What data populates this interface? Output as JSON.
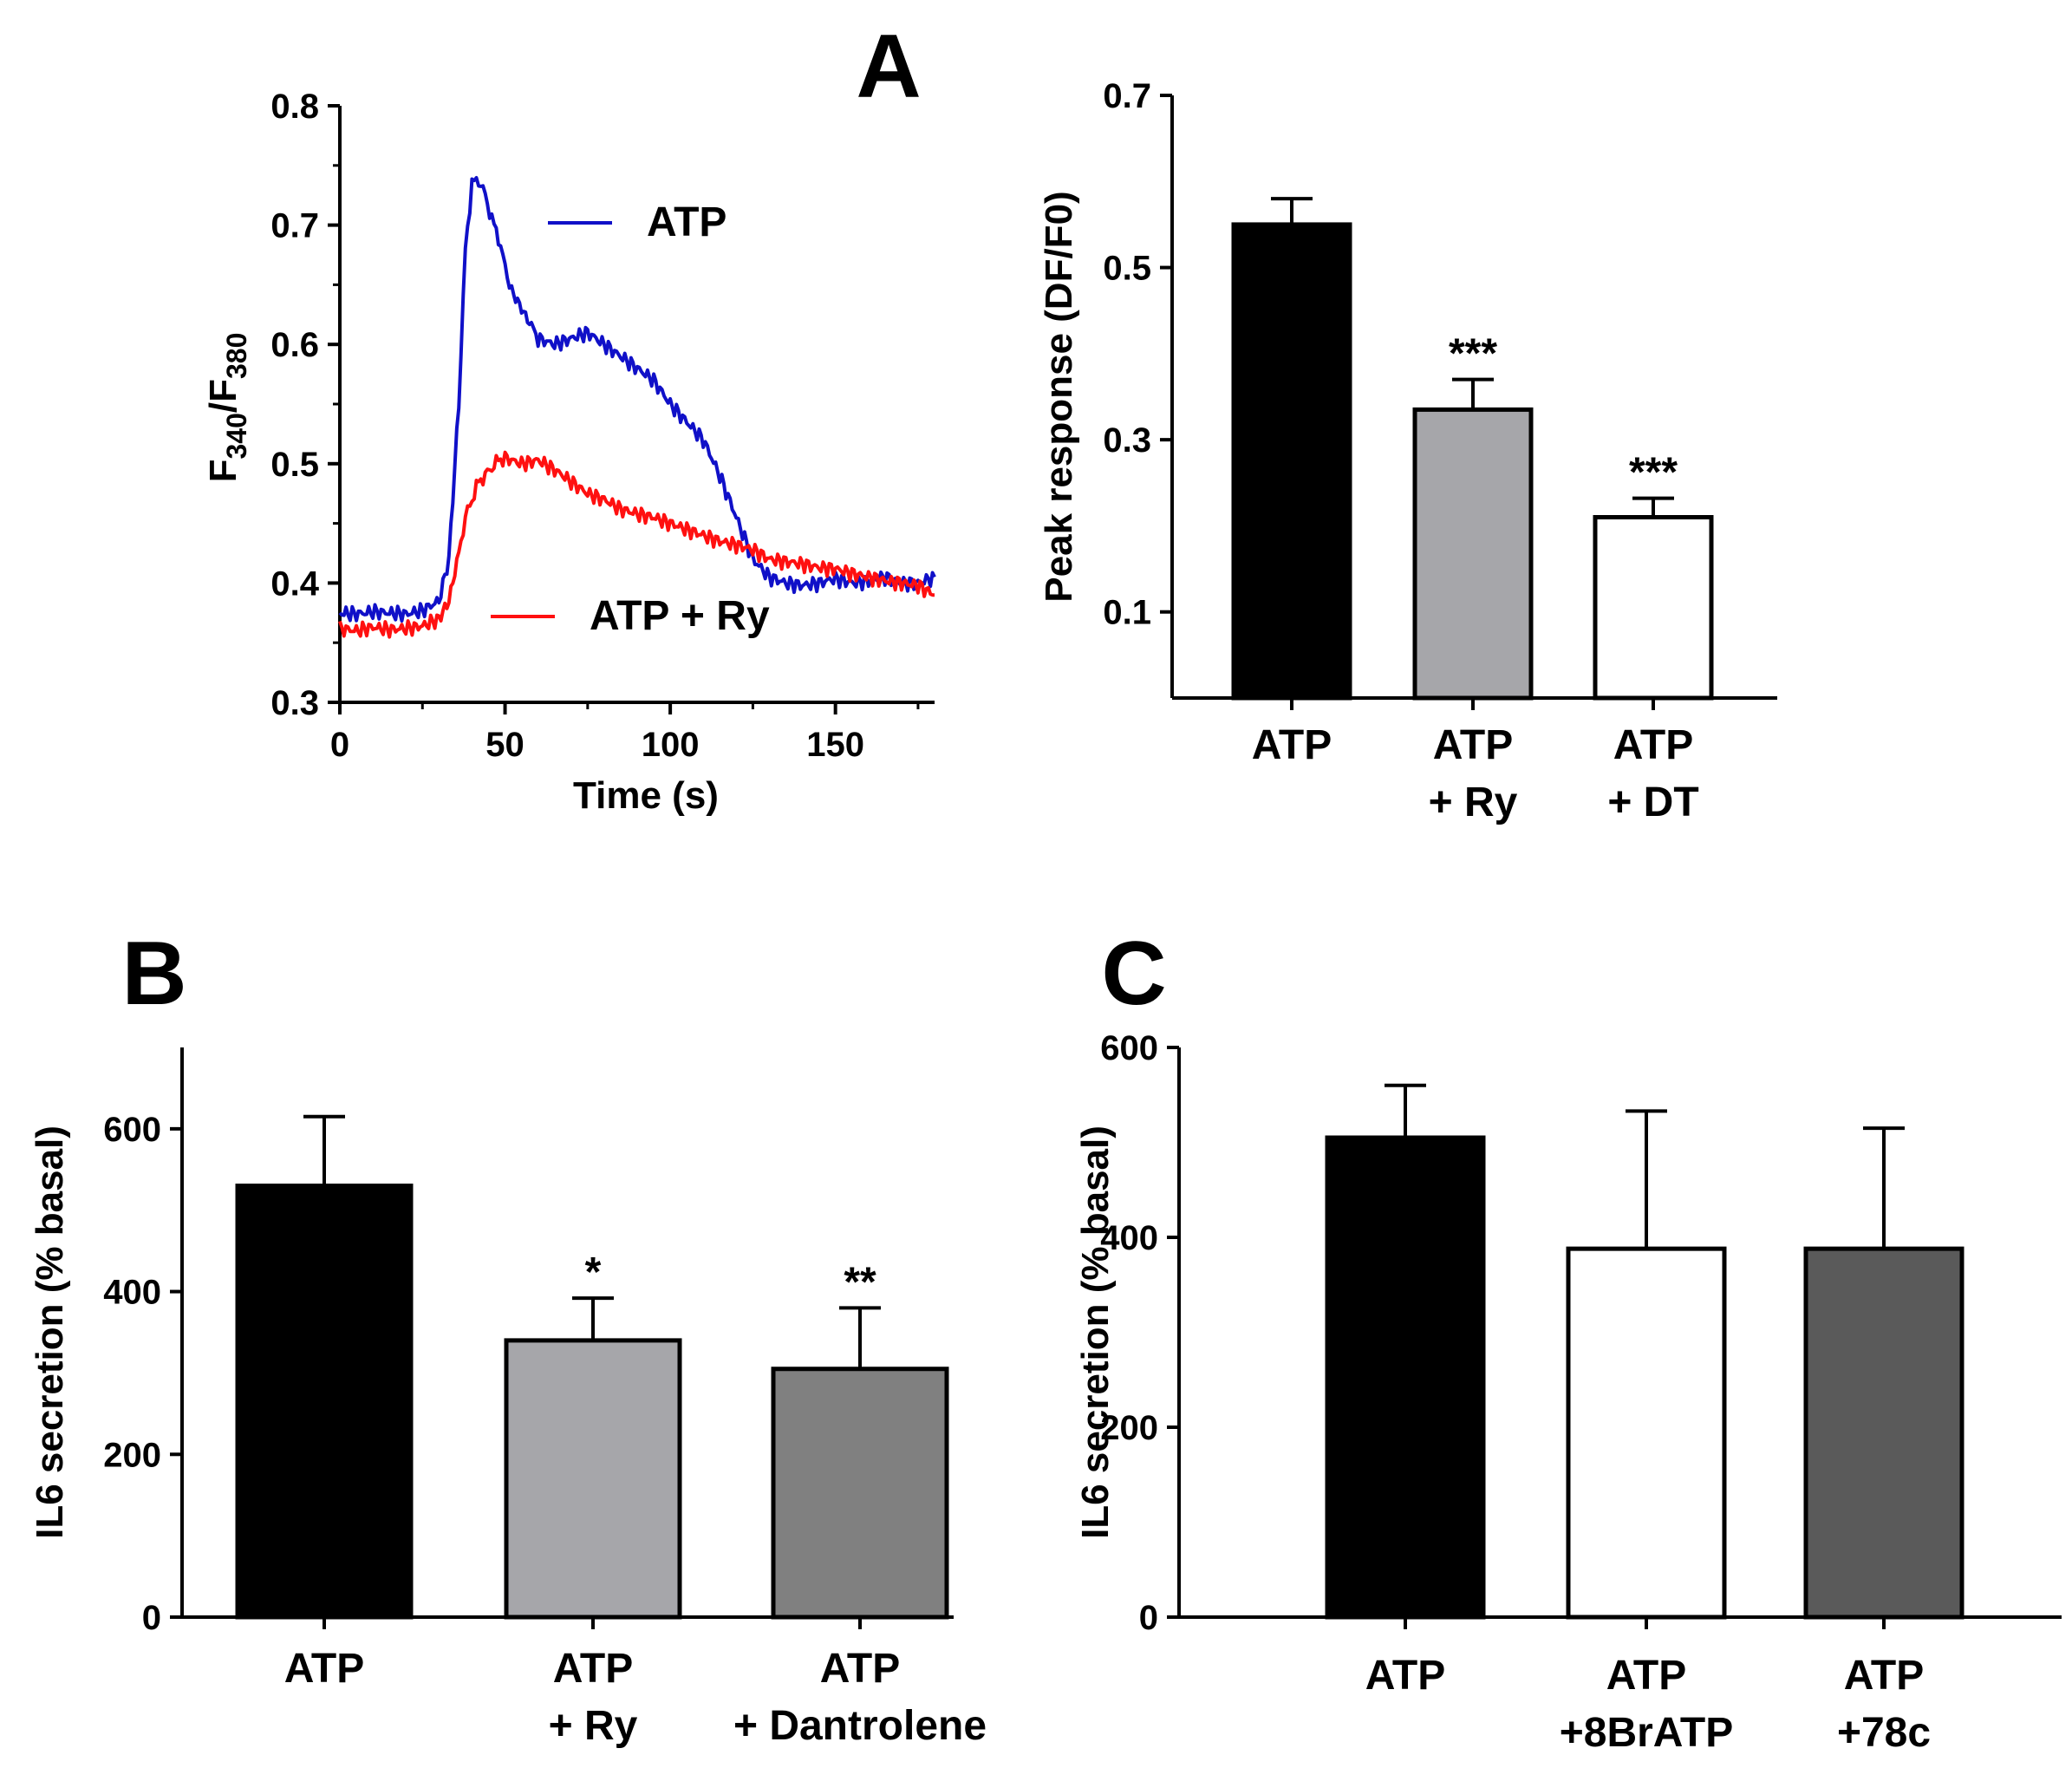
{
  "panel_letters": {
    "a": "A",
    "b": "B",
    "c": "C"
  },
  "colors": {
    "atp_trace": "#1010c8",
    "atp_ry_trace": "#ff1010",
    "black_bar": "#000000",
    "light_grey_bar": "#a6a6aa",
    "mid_grey_bar": "#808080",
    "dark_grey_bar": "#5a5a5a",
    "white_bar": "#ffffff"
  },
  "chart_data": [
    {
      "id": "A-trace",
      "type": "line",
      "xlabel": "Time (s)",
      "ylabel": {
        "base1": "F",
        "sub1": "340",
        "slash": "/F",
        "sub2": "380"
      },
      "xlim": [
        0,
        180
      ],
      "ylim": [
        0.3,
        0.8
      ],
      "xticks": [
        "0",
        "50",
        "100",
        "150"
      ],
      "yticks": [
        "0.3",
        "0.4",
        "0.5",
        "0.6",
        "0.7",
        "0.8"
      ],
      "series": [
        {
          "name": "ATP",
          "color": "#1010c8",
          "x": [
            0,
            5,
            10,
            15,
            20,
            25,
            30,
            33,
            36,
            38,
            40,
            42,
            44,
            46,
            48,
            50,
            52,
            55,
            58,
            60,
            65,
            70,
            75,
            80,
            85,
            90,
            95,
            100,
            105,
            110,
            115,
            120,
            125,
            130,
            135,
            140,
            145,
            150,
            155,
            160,
            165,
            170,
            175,
            180
          ],
          "y": [
            0.375,
            0.374,
            0.376,
            0.375,
            0.374,
            0.377,
            0.385,
            0.42,
            0.55,
            0.68,
            0.735,
            0.738,
            0.725,
            0.705,
            0.69,
            0.665,
            0.645,
            0.63,
            0.615,
            0.605,
            0.6,
            0.605,
            0.61,
            0.6,
            0.59,
            0.58,
            0.57,
            0.55,
            0.535,
            0.52,
            0.49,
            0.455,
            0.42,
            0.405,
            0.4,
            0.398,
            0.4,
            0.404,
            0.4,
            0.402,
            0.405,
            0.4,
            0.4,
            0.405
          ]
        },
        {
          "name": "ATP + Ry",
          "color": "#ff1010",
          "x": [
            0,
            5,
            10,
            15,
            20,
            25,
            30,
            33,
            36,
            38,
            40,
            42,
            44,
            46,
            48,
            50,
            55,
            60,
            65,
            70,
            75,
            80,
            85,
            90,
            95,
            100,
            105,
            110,
            115,
            120,
            125,
            130,
            135,
            140,
            145,
            150,
            155,
            160,
            165,
            170,
            175,
            180
          ],
          "y": [
            0.362,
            0.36,
            0.363,
            0.361,
            0.362,
            0.364,
            0.37,
            0.385,
            0.425,
            0.455,
            0.47,
            0.485,
            0.49,
            0.497,
            0.503,
            0.505,
            0.5,
            0.503,
            0.495,
            0.485,
            0.475,
            0.47,
            0.462,
            0.458,
            0.455,
            0.45,
            0.445,
            0.44,
            0.435,
            0.432,
            0.428,
            0.42,
            0.418,
            0.416,
            0.413,
            0.412,
            0.408,
            0.405,
            0.402,
            0.4,
            0.398,
            0.39
          ]
        }
      ]
    },
    {
      "id": "A-bars",
      "type": "bar",
      "ylabel": "Peak response (DF/F0)",
      "ylim": [
        0.0,
        0.7
      ],
      "yticks": [
        "0.1",
        "0.3",
        "0.5",
        "0.7"
      ],
      "categories": [
        [
          "ATP"
        ],
        [
          "ATP",
          "+ Ry"
        ],
        [
          "ATP",
          "+ DT"
        ]
      ],
      "values": [
        0.55,
        0.335,
        0.21
      ],
      "errors": [
        0.03,
        0.035,
        0.022
      ],
      "significance": [
        "",
        "***",
        "***"
      ],
      "bar_colors": [
        "#000000",
        "#a6a6aa",
        "#ffffff"
      ]
    },
    {
      "id": "B",
      "type": "bar",
      "ylabel": "IL6 secretion (% basal)",
      "ylim": [
        0,
        700
      ],
      "yticks": [
        "0",
        "200",
        "400",
        "600"
      ],
      "categories": [
        [
          "ATP"
        ],
        [
          "ATP",
          "+ Ry"
        ],
        [
          "ATP",
          "+ Dantrolene"
        ]
      ],
      "values": [
        530,
        340,
        305
      ],
      "errors": [
        85,
        52,
        75
      ],
      "significance": [
        "",
        "*",
        "**"
      ],
      "bar_colors": [
        "#000000",
        "#a6a6aa",
        "#808080"
      ]
    },
    {
      "id": "C",
      "type": "bar",
      "ylabel": "IL6 secretion (% basal)",
      "ylim": [
        0,
        600
      ],
      "yticks": [
        "0",
        "200",
        "400",
        "600"
      ],
      "categories": [
        [
          "ATP"
        ],
        [
          "ATP",
          "+8BrATP"
        ],
        [
          "ATP",
          "+78c"
        ]
      ],
      "values": [
        505,
        388,
        388
      ],
      "errors": [
        55,
        145,
        127
      ],
      "significance": [
        "",
        "",
        ""
      ],
      "bar_colors": [
        "#000000",
        "#ffffff",
        "#5a5a5a"
      ]
    }
  ]
}
